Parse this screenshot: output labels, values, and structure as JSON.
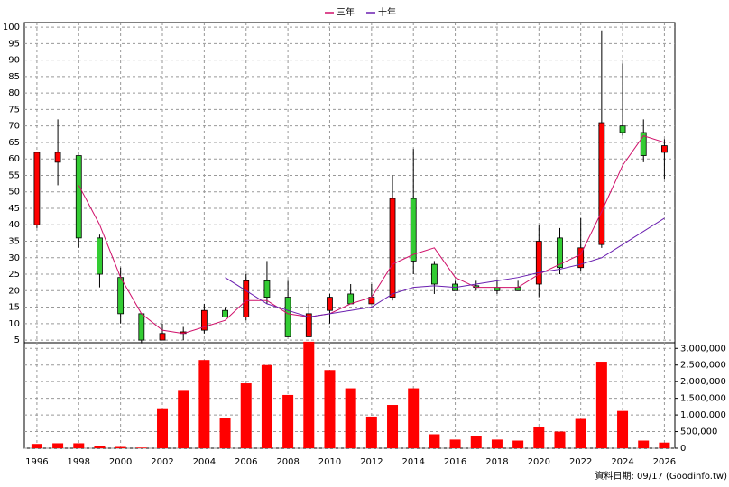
{
  "chart_data": {
    "type": "candlestick",
    "x": [
      1996,
      1997,
      1998,
      1999,
      2000,
      2001,
      2002,
      2003,
      2004,
      2005,
      2006,
      2007,
      2008,
      2009,
      2010,
      2011,
      2012,
      2013,
      2014,
      2015,
      2016,
      2017,
      2018,
      2019,
      2020,
      2021,
      2022,
      2023,
      2024,
      2025,
      2026
    ],
    "open": [
      40,
      59,
      61,
      36,
      24,
      13,
      5,
      7,
      8,
      14,
      12,
      23,
      18,
      6,
      14,
      19,
      16,
      18,
      48,
      28,
      22,
      21.5,
      21,
      21,
      22,
      36,
      27,
      34,
      70,
      68,
      62
    ],
    "high": [
      62,
      72,
      61,
      37,
      27,
      13,
      10,
      9,
      16,
      15,
      25,
      29,
      23,
      16,
      19,
      22,
      22,
      55,
      63,
      29,
      23,
      23,
      23,
      23,
      40,
      39,
      42,
      99,
      89,
      72,
      66
    ],
    "low": [
      39,
      52,
      33,
      21,
      10,
      4,
      5,
      5,
      7,
      12,
      11,
      16,
      6,
      6,
      10,
      16,
      16,
      17,
      25,
      19,
      20,
      20,
      19,
      20,
      18,
      25,
      26,
      33,
      67,
      59,
      54
    ],
    "close": [
      62,
      62,
      36,
      25,
      13,
      5,
      7,
      7.5,
      14,
      12,
      23,
      18,
      6,
      13,
      18,
      16,
      18,
      48,
      29,
      22,
      20,
      21,
      20,
      20,
      35,
      27,
      33,
      71,
      68,
      61,
      64
    ],
    "up_color": "#ff0000",
    "down_color": "#33cc33",
    "series": [
      {
        "name": "三年",
        "color": "#d0106a",
        "values": [
          null,
          null,
          52,
          40,
          24,
          13,
          8,
          7,
          9,
          11,
          17,
          17,
          13,
          12,
          13,
          16,
          18,
          28,
          31,
          33,
          24,
          21,
          21,
          21,
          25,
          28,
          31,
          44,
          58,
          67,
          65
        ]
      },
      {
        "name": "十年",
        "color": "#6a1fb0",
        "values": [
          null,
          null,
          null,
          null,
          null,
          null,
          null,
          null,
          null,
          24,
          20,
          16,
          14,
          12,
          13,
          14,
          15,
          19,
          21,
          21.5,
          21,
          22,
          23,
          24,
          25.5,
          26.5,
          28,
          30,
          34,
          38,
          42
        ]
      }
    ],
    "volume": {
      "axis": "y2",
      "color": "#ff0000",
      "values": [
        130000,
        150000,
        150000,
        80000,
        40000,
        20000,
        1200000,
        1750000,
        2650000,
        900000,
        1950000,
        2500000,
        1600000,
        3200000,
        2350000,
        1800000,
        950000,
        1300000,
        1800000,
        420000,
        260000,
        360000,
        260000,
        230000,
        650000,
        500000,
        880000,
        2600000,
        1120000,
        230000,
        170000
      ]
    },
    "xlim": [
      1995.4,
      2026.5
    ],
    "xticks": [
      1996,
      1998,
      2000,
      2002,
      2004,
      2006,
      2008,
      2010,
      2012,
      2014,
      2016,
      2018,
      2020,
      2022,
      2024,
      2026
    ],
    "ylim": [
      4.2,
      101.4
    ],
    "yticks": [
      5,
      10,
      15,
      20,
      25,
      30,
      35,
      40,
      45,
      50,
      55,
      60,
      65,
      70,
      75,
      80,
      85,
      90,
      95,
      100
    ],
    "y2lim": [
      0,
      3170000
    ],
    "y2ticks": [
      0,
      {
        "value": 500000,
        "label": "500,000"
      },
      {
        "value": 1000000,
        "label": "1,000,000"
      },
      {
        "value": 1500000,
        "label": "1,500,000"
      },
      {
        "value": 2000000,
        "label": "2,000,000"
      },
      {
        "value": 2500000,
        "label": "2,500,000"
      },
      {
        "value": 3000000,
        "label": "3,000,000"
      }
    ],
    "grid": true,
    "legend": "top",
    "footnote": "資料日期: 09/17  (Goodinfo.tw)"
  }
}
